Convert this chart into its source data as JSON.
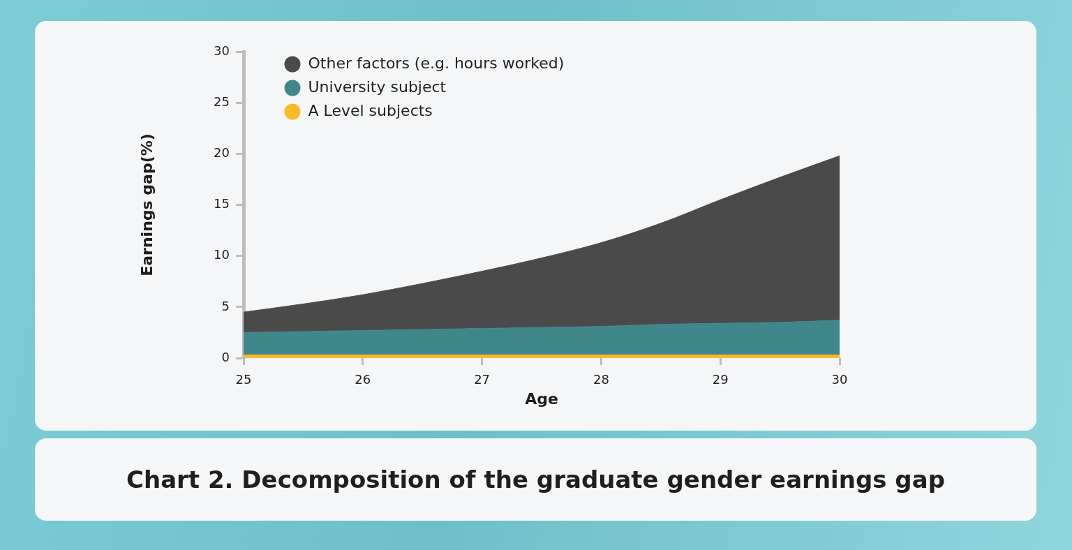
{
  "chart_data": {
    "type": "area",
    "title": "Chart 2. Decomposition of the graduate gender earnings gap",
    "xlabel": "Age",
    "ylabel": "Earnings gap(%)",
    "x": [
      25,
      25.5,
      26,
      26.5,
      27,
      27.5,
      28,
      28.5,
      29,
      29.5,
      30
    ],
    "stacked": true,
    "series": [
      {
        "name": "A Level subjects",
        "color": "#fbb829",
        "values": [
          0.3,
          0.3,
          0.3,
          0.3,
          0.3,
          0.3,
          0.3,
          0.3,
          0.3,
          0.3,
          0.3
        ]
      },
      {
        "name": "University subject",
        "color": "#40878c",
        "values": [
          2.2,
          2.3,
          2.4,
          2.5,
          2.6,
          2.7,
          2.8,
          3.0,
          3.1,
          3.2,
          3.4
        ]
      },
      {
        "name": "Other factors (e.g. hours worked)",
        "color": "#4a4a4a",
        "values": [
          2.0,
          2.7,
          3.5,
          4.5,
          5.6,
          6.8,
          8.2,
          9.9,
          12.1,
          14.2,
          16.1
        ]
      }
    ],
    "xlim": [
      25,
      30
    ],
    "xticks": [
      25,
      26,
      27,
      28,
      29,
      30
    ],
    "ylim": [
      0,
      30
    ],
    "yticks": [
      0,
      5,
      10,
      15,
      20,
      25,
      30
    ],
    "legend": "top left",
    "grid": false
  }
}
